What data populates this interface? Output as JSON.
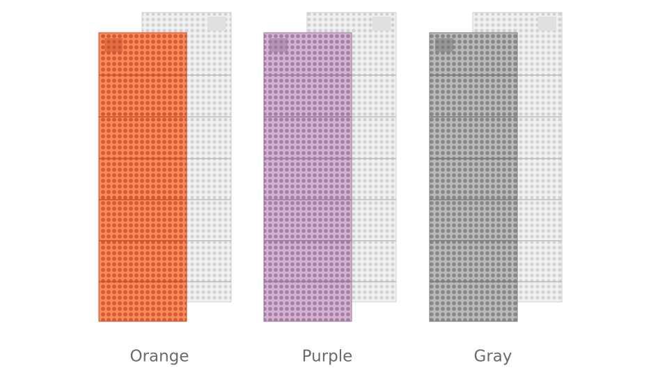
{
  "products": [
    {
      "label": "Orange"
    },
    {
      "label": "Purple"
    },
    {
      "label": "Gray"
    }
  ]
}
